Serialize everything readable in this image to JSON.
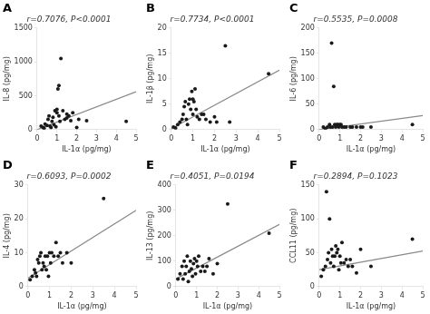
{
  "chart_data": [
    {
      "type": "scatter",
      "label": "A",
      "title": "r=0.7076, P<0.0001",
      "x_label": "IL-1α (pg/mg)",
      "y_label": "IL-8 (pg/mg)",
      "xlim": [
        0,
        5
      ],
      "ylim": [
        0,
        1500
      ],
      "xticks": [
        0,
        1,
        2,
        3,
        4,
        5
      ],
      "yticks": [
        0,
        500,
        1000,
        1500
      ],
      "grid": false,
      "series": [
        {
          "type": "scatter",
          "color": "#1a1a1a",
          "x": [
            0.2,
            0.3,
            0.35,
            0.4,
            0.5,
            0.55,
            0.6,
            0.65,
            0.7,
            0.75,
            0.8,
            0.85,
            0.9,
            0.95,
            1.0,
            1.0,
            1.05,
            1.1,
            1.1,
            1.15,
            1.2,
            1.3,
            1.4,
            1.5,
            1.5,
            1.6,
            1.7,
            1.8,
            2.0,
            2.1,
            2.5,
            4.5
          ],
          "values": [
            50,
            30,
            20,
            80,
            60,
            150,
            200,
            50,
            30,
            120,
            180,
            70,
            280,
            40,
            250,
            300,
            600,
            650,
            200,
            120,
            1050,
            280,
            150,
            230,
            170,
            200,
            130,
            250,
            30,
            150,
            130,
            120
          ]
        },
        {
          "type": "line",
          "color": "#888888",
          "x": [
            0,
            5
          ],
          "values": [
            0,
            560
          ]
        }
      ]
    },
    {
      "type": "scatter",
      "label": "B",
      "title": "r=0.7734, P<0.0001",
      "x_label": "IL-1α (pg/mg)",
      "y_label": "IL-1β (pg/mg)",
      "xlim": [
        0,
        5
      ],
      "ylim": [
        0,
        20
      ],
      "xticks": [
        0,
        1,
        2,
        3,
        4,
        5
      ],
      "yticks": [
        0,
        5,
        10,
        15,
        20
      ],
      "grid": false,
      "series": [
        {
          "type": "scatter",
          "color": "#1a1a1a",
          "x": [
            0.1,
            0.2,
            0.3,
            0.4,
            0.5,
            0.55,
            0.6,
            0.65,
            0.7,
            0.75,
            0.8,
            0.85,
            0.9,
            0.95,
            1.0,
            1.0,
            1.05,
            1.1,
            1.15,
            1.2,
            1.3,
            1.4,
            1.5,
            1.6,
            1.8,
            2.0,
            2.1,
            2.5,
            2.7,
            4.5
          ],
          "values": [
            0.5,
            0.3,
            1.0,
            1.5,
            2.0,
            3.0,
            4.5,
            5.5,
            2.0,
            1.0,
            5.0,
            6.0,
            4.0,
            7.5,
            3.0,
            6.0,
            5.5,
            8.0,
            4.0,
            2.5,
            2.0,
            3.0,
            3.0,
            2.0,
            1.5,
            2.5,
            1.5,
            16.5,
            1.5,
            11.0
          ]
        },
        {
          "type": "line",
          "color": "#888888",
          "x": [
            0,
            5
          ],
          "values": [
            0.2,
            11.7
          ]
        }
      ]
    },
    {
      "type": "scatter",
      "label": "C",
      "title": "r=0.5535, P=0.0008",
      "x_label": "IL-1α (pg/mg)",
      "y_label": "IL-6 (pg/mg)",
      "xlim": [
        0,
        5
      ],
      "ylim": [
        0,
        200
      ],
      "xticks": [
        0,
        1,
        2,
        3,
        4,
        5
      ],
      "yticks": [
        0,
        50,
        100,
        150,
        200
      ],
      "grid": false,
      "series": [
        {
          "type": "scatter",
          "color": "#1a1a1a",
          "x": [
            0.2,
            0.3,
            0.4,
            0.5,
            0.55,
            0.6,
            0.65,
            0.7,
            0.75,
            0.8,
            0.85,
            0.9,
            0.95,
            1.0,
            1.05,
            1.1,
            1.2,
            1.3,
            1.5,
            1.6,
            1.8,
            2.0,
            2.1,
            2.5,
            4.5
          ],
          "values": [
            5,
            2,
            5,
            10,
            5,
            170,
            5,
            85,
            10,
            5,
            10,
            10,
            5,
            10,
            10,
            5,
            5,
            5,
            5,
            5,
            5,
            5,
            5,
            5,
            10
          ]
        },
        {
          "type": "line",
          "color": "#888888",
          "x": [
            0,
            5
          ],
          "values": [
            0.0,
            27.5
          ]
        }
      ]
    },
    {
      "type": "scatter",
      "label": "D",
      "title": "r=0.6093, P=0.0002",
      "x_label": "IL-1α (pg/mg)",
      "y_label": "IL-4 (pg/mg)",
      "xlim": [
        0,
        5
      ],
      "ylim": [
        0,
        30
      ],
      "xticks": [
        0,
        1,
        2,
        3,
        4,
        5
      ],
      "yticks": [
        0,
        10,
        20,
        30
      ],
      "grid": false,
      "series": [
        {
          "type": "scatter",
          "color": "#1a1a1a",
          "x": [
            0.1,
            0.2,
            0.3,
            0.35,
            0.4,
            0.45,
            0.5,
            0.55,
            0.6,
            0.65,
            0.7,
            0.75,
            0.8,
            0.85,
            0.9,
            0.95,
            1.0,
            1.05,
            1.1,
            1.2,
            1.3,
            1.4,
            1.5,
            1.6,
            1.8,
            2.0,
            3.5
          ],
          "values": [
            2,
            3,
            5,
            4,
            3,
            8,
            7,
            9,
            10,
            5,
            7,
            6,
            9,
            5,
            9,
            3,
            10,
            7,
            10,
            9,
            13,
            9,
            10,
            7,
            10,
            7,
            26
          ]
        },
        {
          "type": "line",
          "color": "#888888",
          "x": [
            0,
            5
          ],
          "values": [
            2.5,
            22.5
          ]
        }
      ]
    },
    {
      "type": "scatter",
      "label": "E",
      "title": "r=0.4051, P=0.0194",
      "x_label": "IL-1α (pg/mg)",
      "y_label": "IL-13 (pg/mg)",
      "xlim": [
        0,
        5
      ],
      "ylim": [
        0,
        400
      ],
      "xticks": [
        0,
        1,
        2,
        3,
        4,
        5
      ],
      "yticks": [
        0,
        100,
        200,
        300,
        400
      ],
      "grid": false,
      "series": [
        {
          "type": "scatter",
          "color": "#1a1a1a",
          "x": [
            0.1,
            0.2,
            0.3,
            0.35,
            0.4,
            0.45,
            0.5,
            0.55,
            0.6,
            0.65,
            0.7,
            0.75,
            0.8,
            0.85,
            0.9,
            0.95,
            1.0,
            1.05,
            1.1,
            1.2,
            1.3,
            1.4,
            1.5,
            1.6,
            1.8,
            2.0,
            2.5,
            4.5
          ],
          "values": [
            30,
            50,
            80,
            30,
            100,
            50,
            80,
            120,
            20,
            60,
            100,
            70,
            40,
            90,
            110,
            50,
            100,
            80,
            120,
            60,
            80,
            60,
            80,
            110,
            50,
            90,
            325,
            210
          ]
        },
        {
          "type": "line",
          "color": "#888888",
          "x": [
            0,
            5
          ],
          "values": [
            30.0,
            245.0
          ]
        }
      ]
    },
    {
      "type": "scatter",
      "label": "F",
      "title": "r=0.2894, P=0.1023",
      "x_label": "IL-1α (pg/mg)",
      "y_label": "CCL11 (pg/mg)",
      "xlim": [
        0,
        5
      ],
      "ylim": [
        0,
        150
      ],
      "xticks": [
        0,
        1,
        2,
        3,
        4,
        5
      ],
      "yticks": [
        0,
        50,
        100,
        150
      ],
      "grid": false,
      "series": [
        {
          "type": "scatter",
          "color": "#1a1a1a",
          "x": [
            0.1,
            0.2,
            0.3,
            0.35,
            0.4,
            0.45,
            0.5,
            0.55,
            0.6,
            0.65,
            0.7,
            0.75,
            0.8,
            0.85,
            0.9,
            0.95,
            1.0,
            1.05,
            1.1,
            1.2,
            1.3,
            1.4,
            1.5,
            1.6,
            1.8,
            2.0,
            2.5,
            4.5
          ],
          "values": [
            15,
            25,
            30,
            140,
            40,
            50,
            100,
            35,
            55,
            45,
            30,
            45,
            60,
            50,
            55,
            25,
            45,
            35,
            65,
            35,
            40,
            30,
            40,
            30,
            20,
            55,
            30,
            70
          ]
        },
        {
          "type": "line",
          "color": "#888888",
          "x": [
            0,
            5
          ],
          "values": [
            25.0,
            52.5
          ]
        }
      ]
    }
  ]
}
